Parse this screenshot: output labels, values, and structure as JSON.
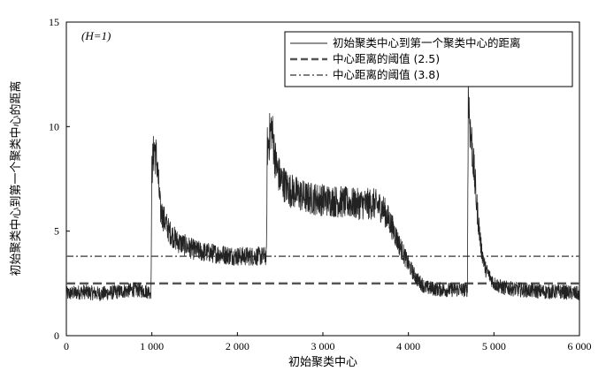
{
  "chart_data": {
    "type": "line",
    "annotation": "(H=1)",
    "xlabel": "初始聚类中心",
    "ylabel": "初始聚类中心到第一个聚类中心的距离",
    "xlim": [
      0,
      6000
    ],
    "ylim": [
      0,
      15
    ],
    "xticks": [
      0,
      1000,
      2000,
      3000,
      4000,
      5000,
      6000
    ],
    "xtick_labels": [
      "0",
      "1 000",
      "2 000",
      "3 000",
      "4 000",
      "5 000",
      "6 000"
    ],
    "yticks": [
      0,
      5,
      10,
      15
    ],
    "ytick_labels": [
      "0",
      "5",
      "10",
      "15"
    ],
    "legend_position": "top-right",
    "grid": false,
    "series": [
      {
        "name": "初始聚类中心到第一个聚类中心的距离",
        "style": "solid",
        "color": "#222222",
        "x": [
          0,
          200,
          400,
          600,
          800,
          990,
          1000,
          1030,
          1060,
          1100,
          1200,
          1300,
          1400,
          1500,
          1600,
          1800,
          2000,
          2200,
          2340,
          2350,
          2400,
          2450,
          2500,
          2600,
          2700,
          2800,
          3000,
          3200,
          3400,
          3600,
          3700,
          3800,
          3900,
          4000,
          4100,
          4200,
          4400,
          4600,
          4690,
          4700,
          4720,
          4750,
          4800,
          4850,
          4900,
          5000,
          5100,
          5300,
          5600,
          5800,
          6000
        ],
        "y": [
          2.0,
          2.1,
          2.0,
          2.1,
          2.2,
          2.1,
          8.0,
          9.0,
          8.3,
          6.0,
          5.0,
          4.5,
          4.3,
          4.1,
          4.0,
          3.9,
          3.8,
          3.8,
          3.8,
          9.0,
          10.0,
          8.2,
          7.5,
          7.0,
          6.8,
          6.6,
          6.5,
          6.4,
          6.3,
          6.3,
          6.1,
          5.3,
          4.3,
          3.4,
          2.7,
          2.3,
          2.2,
          2.2,
          2.2,
          11.8,
          10.0,
          8.8,
          6.2,
          4.2,
          3.2,
          2.5,
          2.3,
          2.2,
          2.1,
          2.1,
          2.0
        ]
      },
      {
        "name": "中心距离的阈值 (2.5)",
        "style": "dashed",
        "color": "#555555",
        "x": [
          0,
          6000
        ],
        "y": [
          2.5,
          2.5
        ]
      },
      {
        "name": "中心距离的阈值 (3.8)",
        "style": "dash-dot",
        "color": "#555555",
        "x": [
          0,
          6000
        ],
        "y": [
          3.8,
          3.8
        ]
      }
    ]
  }
}
